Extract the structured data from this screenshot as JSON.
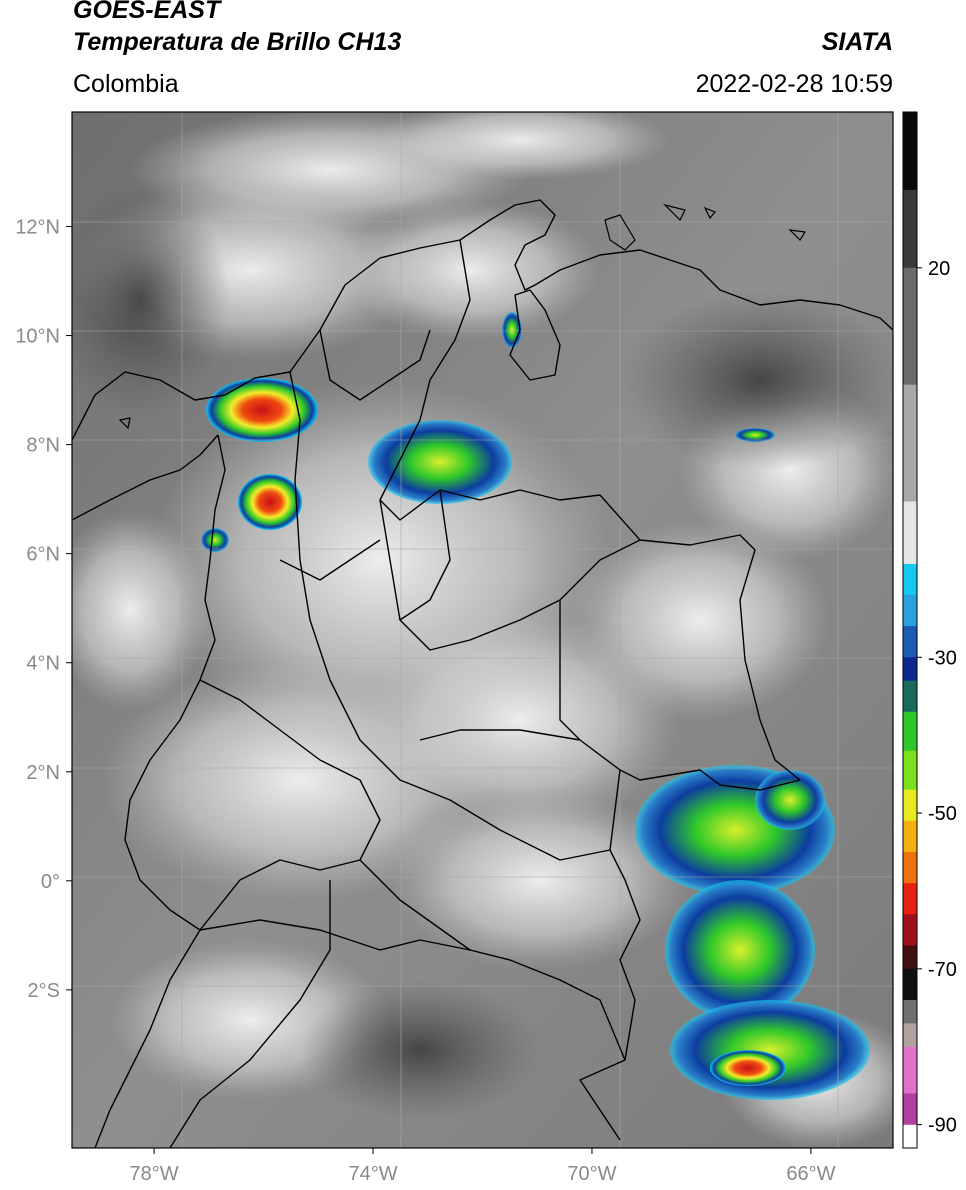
{
  "header": {
    "satellite": "GOES-EAST",
    "product": "Temperatura de Brillo CH13",
    "region": "Colombia",
    "agency": "SIATA",
    "datetime": "2022-02-28 10:59"
  },
  "map": {
    "lat_ticks": [
      "12°N",
      "10°N",
      "8°N",
      "6°N",
      "4°N",
      "2°N",
      "0°",
      "2°S"
    ],
    "lon_ticks": [
      "78°W",
      "74°W",
      "70°W",
      "66°W"
    ],
    "extent": {
      "lon_min": -79.5,
      "lon_max": -64.5,
      "lat_min": -4.9,
      "lat_max": 14.1
    }
  },
  "colorbar": {
    "ticks": [
      "20",
      "-30",
      "-50",
      "-70",
      "-90"
    ],
    "range_c": [
      40,
      -93
    ]
  },
  "colors": {
    "cold_red": "#e8101a",
    "yellow": "#f4ec2a",
    "green": "#2fc82a",
    "blue": "#0c3da0",
    "cyan": "#15c8f0",
    "magenta": "#c04aa8"
  }
}
